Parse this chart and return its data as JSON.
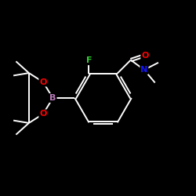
{
  "background_color": "#000000",
  "bond_color": "#ffffff",
  "atom_colors": {
    "B": "#b87ab8",
    "O": "#ff0000",
    "F": "#33cc33",
    "N": "#1414ff",
    "C": "#ffffff"
  },
  "figsize": [
    2.5,
    2.5
  ],
  "dpi": 100
}
